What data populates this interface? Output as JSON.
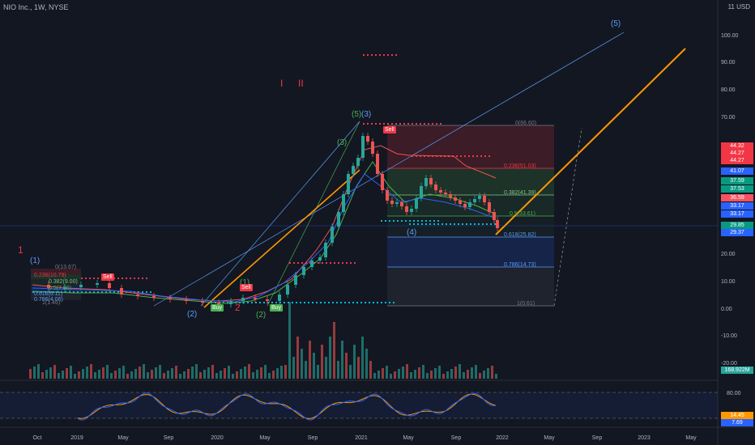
{
  "header": {
    "title": "NIO Inc., 1W, NYSE",
    "currency": "11 USD"
  },
  "y_axis": {
    "ticks": [
      "100.00",
      "90.00",
      "80.00",
      "70.00",
      "60.00",
      "50.00",
      "40.00",
      "30.00",
      "20.00",
      "10.00",
      "0.00",
      "-10.00",
      "-20.00"
    ]
  },
  "price_labels": [
    {
      "text": "44.32",
      "color": "#f23645"
    },
    {
      "text": "44.27",
      "color": "#f23645"
    },
    {
      "text": "44.27",
      "color": "#f23645"
    },
    {
      "text": "41.07",
      "color": "#2962ff"
    },
    {
      "text": "37.59",
      "color": "#089981"
    },
    {
      "text": "37.53",
      "color": "#089981"
    },
    {
      "text": "36.59",
      "color": "#f7525f"
    },
    {
      "text": "33.17",
      "color": "#2962ff"
    },
    {
      "text": "33.17",
      "color": "#2962ff"
    },
    {
      "text": "29.85",
      "color": "#089981"
    },
    {
      "text": "29.37",
      "color": "#2962ff"
    }
  ],
  "volume_label": "168.922M",
  "oscillator": {
    "ticks": [
      "80.00",
      "20.00"
    ],
    "labels": [
      {
        "text": "14.45",
        "color": "#ff9800"
      },
      {
        "text": "7.69",
        "color": "#2962ff"
      }
    ]
  },
  "x_axis": {
    "ticks": [
      "Oct",
      "2019",
      "May",
      "Sep",
      "2020",
      "May",
      "Sep",
      "2021",
      "May",
      "Sep",
      "2022",
      "May",
      "Sep",
      "2023",
      "May"
    ]
  },
  "fib_right": [
    {
      "text": "0(66.60)",
      "color": "#787b86"
    },
    {
      "text": "0.236(51.03)",
      "color": "#f23645"
    },
    {
      "text": "0.382(41.39)",
      "color": "#81c784"
    },
    {
      "text": "0.5(33.61)",
      "color": "#4caf50"
    },
    {
      "text": "0.618(25.82)",
      "color": "#5b9cf6"
    },
    {
      "text": "0.786(14.73)",
      "color": "#5b9cf6"
    },
    {
      "text": "1(0.61)",
      "color": "#787b86"
    }
  ],
  "fib_left": [
    {
      "text": "0(13.67)",
      "color": "#787b86"
    },
    {
      "text": "0.236(10.79)",
      "color": "#f23645"
    },
    {
      "text": "0.382(9.00)",
      "color": "#81c784"
    },
    {
      "text": "0.5(7.55)",
      "color": "#4caf50"
    },
    {
      "text": "0.618(6.11)",
      "color": "#5b9cf6"
    },
    {
      "text": "0.786(4.06)",
      "color": "#5b9cf6"
    },
    {
      "text": "1(1.46)",
      "color": "#787b86"
    }
  ],
  "wave_labels": [
    {
      "text": "(1)",
      "color": "#5b9cf6"
    },
    {
      "text": "(2)",
      "color": "#5b9cf6"
    },
    {
      "text": "(3)",
      "color": "#5b9cf6"
    },
    {
      "text": "(4)",
      "color": "#5b9cf6"
    },
    {
      "text": "(5)",
      "color": "#5b9cf6"
    },
    {
      "text": "(1)",
      "color": "#4caf50"
    },
    {
      "text": "(2)",
      "color": "#4caf50"
    },
    {
      "text": "(3)",
      "color": "#4caf50"
    },
    {
      "text": "(5)",
      "color": "#4caf50"
    },
    {
      "text": "1",
      "color": "#f23645"
    },
    {
      "text": "2",
      "color": "#f23645"
    },
    {
      "text": "I",
      "color": "#f23645"
    },
    {
      "text": "II",
      "color": "#f23645"
    }
  ],
  "signals": [
    {
      "text": "Sell",
      "color": "#f23645"
    },
    {
      "text": "Sell",
      "color": "#f23645"
    },
    {
      "text": "Sell",
      "color": "#f23645"
    },
    {
      "text": "Buy",
      "color": "#4caf50"
    },
    {
      "text": "Buy",
      "color": "#4caf50"
    }
  ],
  "colors": {
    "background": "#131722",
    "up": "#26a69a",
    "down": "#ef5350",
    "trendline": "#ff9800",
    "channel": "#5b9cf6"
  }
}
